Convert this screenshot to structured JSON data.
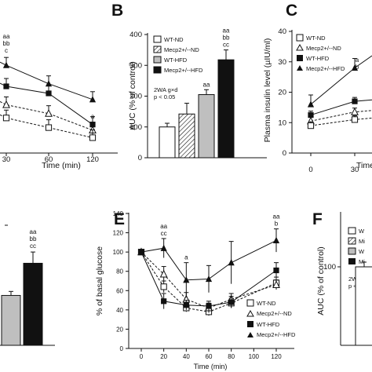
{
  "colors": {
    "ink": "#111111",
    "hfd_gray": "#bfbfbf",
    "mecp2_black": "#111111",
    "wt_white": "#ffffff"
  },
  "panels": {
    "A": {
      "letter": "",
      "xlabel": "Time (min)",
      "xticks": [
        "30",
        "60",
        "120"
      ],
      "sig_labels": [
        {
          "at_x": "30",
          "lines": [
            "aa",
            "bb",
            "c"
          ]
        },
        {
          "at_x": "120",
          "lines": [
            "a"
          ]
        }
      ]
    },
    "B": {
      "letter": "B",
      "ylabel": "AUC (% of control)",
      "yticks": [
        "0",
        "100",
        "200",
        "300",
        "400"
      ],
      "legend": [
        "WT-ND",
        "Mecp2+/--ND",
        "WT-HFD",
        "Mecp2+/--HFD"
      ],
      "stat_lines": [
        "2WA g×d",
        "p < 0.05"
      ],
      "sig_labels": [
        {
          "bar": "WT-HFD",
          "lines": [
            "aa"
          ]
        },
        {
          "bar": "Mecp2+/--HFD",
          "lines": [
            "aa",
            "bb",
            "cc"
          ]
        }
      ]
    },
    "C": {
      "letter": "C",
      "ylabel": "Plasma insulin level (µIU/ml)",
      "yticks": [
        "0",
        "10",
        "20",
        "30",
        "40"
      ],
      "xlabel": "Time",
      "xticks": [
        "0",
        "30"
      ],
      "legend": [
        "WT-ND",
        "Mecp2+/--ND",
        "WT-HFD",
        "Mecp2+/--HFD"
      ],
      "sig_labels": [
        {
          "at_x": "30",
          "lines": [
            "a",
            "b"
          ]
        }
      ]
    },
    "D": {
      "letter": "",
      "sig_labels": [
        {
          "bar": "Mecp2+/--HFD",
          "lines": [
            "aa",
            "bb",
            "cc"
          ]
        }
      ]
    },
    "E": {
      "letter": "E",
      "ylabel": "% of basal glucose",
      "xlabel": "Time (min)",
      "yticks": [
        "0",
        "20",
        "40",
        "60",
        "80",
        "100",
        "120",
        "140"
      ],
      "xticks": [
        "0",
        "20",
        "40",
        "60",
        "80",
        "100",
        "120"
      ],
      "legend": [
        "WT-ND",
        "Mecp2+/--ND",
        "WT-HFD",
        "Mecp2+/--HFD"
      ],
      "sig_labels": [
        {
          "at_x": "20",
          "lines": [
            "aa",
            "cc"
          ]
        },
        {
          "at_x": "40",
          "lines": [
            "a"
          ]
        },
        {
          "at_x": "120",
          "lines": [
            "aa",
            "b"
          ]
        }
      ]
    },
    "F": {
      "letter": "F",
      "ylabel": "AUC (% of control)",
      "yticks": [
        "100"
      ],
      "legend": [
        "W",
        "Mi",
        "W",
        "Mi"
      ],
      "stat_lines": [
        "2WA g×",
        "p < 0.05"
      ]
    }
  },
  "chart_data": [
    {
      "panel": "A",
      "type": "line",
      "xlabel": "Time (min)",
      "ylabel": "",
      "x": [
        30,
        60,
        120
      ],
      "series": [
        {
          "name": "",
          "marker": "triangle-black",
          "values": [
            300,
            258,
            222
          ]
        },
        {
          "name": "",
          "marker": "square-black",
          "values": [
            252,
            236,
            165
          ]
        },
        {
          "name": "",
          "marker": "open-triangle",
          "values": [
            210,
            190,
            152
          ]
        },
        {
          "name": "",
          "marker": "open-square",
          "values": [
            180,
            158,
            135
          ]
        }
      ]
    },
    {
      "panel": "B",
      "type": "bar",
      "ylabel": "AUC (% of control)",
      "ylim": [
        0,
        400
      ],
      "categories": [
        "WT-ND",
        "Mecp2+/--ND",
        "WT-HFD",
        "Mecp2+/--HFD"
      ],
      "values": [
        100,
        142,
        205,
        318
      ],
      "errors": [
        12,
        35,
        16,
        32
      ]
    },
    {
      "panel": "C",
      "type": "line",
      "ylabel": "Plasma insulin level (µIU/ml)",
      "xlabel": "Time",
      "ylim": [
        0,
        40
      ],
      "x": [
        0,
        30
      ],
      "series": [
        {
          "name": "Mecp2+/--HFD",
          "values": [
            16,
            28
          ]
        },
        {
          "name": "WT-HFD",
          "values": [
            12.5,
            17
          ]
        },
        {
          "name": "Mecp2+/--ND",
          "values": [
            10.5,
            13.5
          ]
        },
        {
          "name": "WT-ND",
          "values": [
            9,
            11
          ]
        }
      ]
    },
    {
      "panel": "D",
      "type": "bar",
      "ylabel": "",
      "ylim": [
        0,
        160
      ],
      "categories": [
        "WT-HFD",
        "Mecp2+/--HFD"
      ],
      "values": [
        62,
        102
      ],
      "errors": [
        5,
        14
      ]
    },
    {
      "panel": "E",
      "type": "line",
      "ylabel": "% of basal glucose",
      "xlabel": "Time (min)",
      "ylim": [
        0,
        140
      ],
      "x": [
        0,
        20,
        40,
        60,
        80,
        120
      ],
      "series": [
        {
          "name": "WT-ND",
          "values": [
            100,
            64,
            42,
            38,
            47,
            68
          ]
        },
        {
          "name": "Mecp2+/--ND",
          "values": [
            100,
            77,
            51,
            42,
            51,
            66
          ]
        },
        {
          "name": "WT-HFD",
          "values": [
            100,
            49,
            45,
            44,
            48,
            81
          ]
        },
        {
          "name": "Mecp2+/--HFD",
          "values": [
            100,
            104,
            71,
            72,
            89,
            112
          ]
        }
      ],
      "errors": [
        [
          0,
          6,
          4,
          4,
          5,
          6
        ],
        [
          0,
          8,
          7,
          5,
          6,
          5
        ],
        [
          0,
          8,
          5,
          5,
          6,
          8
        ],
        [
          0,
          10,
          18,
          14,
          22,
          12
        ]
      ]
    },
    {
      "panel": "F",
      "type": "bar",
      "ylabel": "AUC (% of control)",
      "categories": [
        "W"
      ],
      "values": [
        100
      ],
      "errors": [
        6
      ]
    }
  ]
}
